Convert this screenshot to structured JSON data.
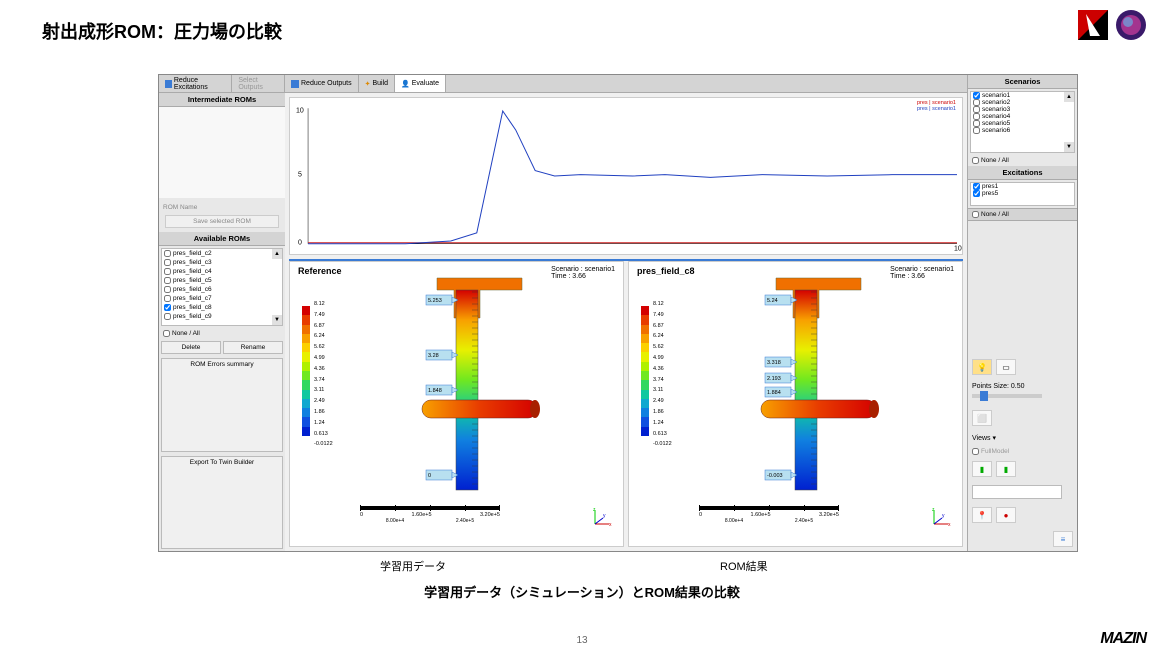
{
  "slide": {
    "title": "射出成形ROM：圧力場の比較",
    "caption_left": "学習用データ",
    "caption_right": "ROM結果",
    "caption_main": "学習用データ（シミュレーション）とROM結果の比較",
    "page_number": "13",
    "footer_logo": "MAZIN"
  },
  "left_panel": {
    "tab_reduce": "Reduce Excitations",
    "tab_select": "Select Outputs",
    "intermediate_title": "Intermediate ROMs",
    "rom_name_label": "ROM Name",
    "save_btn": "Save selected ROM",
    "available_title": "Available ROMs",
    "roms": [
      "pres_field_c2",
      "pres_field_c3",
      "pres_field_c4",
      "pres_field_c5",
      "pres_field_c6",
      "pres_field_c7",
      "pres_field_c8",
      "pres_field_c9"
    ],
    "none_all": "None / All",
    "delete_btn": "Delete",
    "rename_btn": "Rename",
    "errors_btn": "ROM Errors summary",
    "export_btn": "Export To Twin Builder"
  },
  "center": {
    "tab_reduce": "Reduce Outputs",
    "tab_build": "Build",
    "tab_evaluate": "Evaluate",
    "chart": {
      "legend1": "pres | scenario1",
      "legend2": "pres | scenario1",
      "ylim": [
        0,
        10
      ],
      "yticks": [
        0,
        5,
        10
      ],
      "xlim": [
        0,
        10
      ],
      "line_color_blue": "#2040c0",
      "line_color_red": "#d02020",
      "blue_points": [
        [
          0,
          0
        ],
        [
          1.5,
          0
        ],
        [
          2.2,
          0.2
        ],
        [
          2.6,
          0.8
        ],
        [
          3.0,
          9.8
        ],
        [
          3.2,
          8.4
        ],
        [
          3.5,
          5.4
        ],
        [
          3.8,
          5.0
        ],
        [
          4.2,
          5.1
        ],
        [
          5.0,
          5.0
        ],
        [
          5.5,
          5.1
        ],
        [
          6.2,
          4.9
        ],
        [
          7.0,
          5.1
        ],
        [
          8.0,
          5.0
        ],
        [
          9.0,
          5.1
        ],
        [
          10,
          5.1
        ]
      ]
    },
    "ref": {
      "title": "Reference",
      "scenario": "Scenario : scenario1",
      "time": "Time : 3.66",
      "probes": [
        "5.253",
        "3.28",
        "1.848",
        "0"
      ],
      "scale_top": [
        "0",
        "1.60e+5",
        "3.20e+5"
      ],
      "scale_bot": [
        "8.00e+4",
        "2.40e+5"
      ]
    },
    "rom": {
      "title": "pres_field_c8",
      "scenario": "Scenario : scenario1",
      "time": "Time : 3.66",
      "probes": [
        "5.24",
        "3.318",
        "2.193",
        "1.884",
        "-0.003"
      ],
      "scale_top": [
        "0",
        "1.60e+5",
        "3.20e+5"
      ],
      "scale_bot": [
        "8.00e+4",
        "2.40e+5"
      ]
    },
    "colorbar": {
      "labels": [
        "8.12",
        "7.49",
        "6.87",
        "6.24",
        "5.62",
        "4.99",
        "4.36",
        "3.74",
        "3.11",
        "2.49",
        "1.86",
        "1.24",
        "0.613",
        "-0.0122"
      ],
      "colors": [
        "#d40000",
        "#e83c00",
        "#f07000",
        "#f8a000",
        "#fcd000",
        "#e8f000",
        "#b0f000",
        "#70e820",
        "#30d860",
        "#10c8a0",
        "#10a8d0",
        "#1080e0",
        "#1050e0",
        "#0020d0"
      ]
    }
  },
  "right_panel": {
    "scenarios_title": "Scenarios",
    "scenarios": [
      "scenario1",
      "scenario2",
      "scenario3",
      "scenario4",
      "scenario5",
      "scenario6"
    ],
    "none_all": "None / All",
    "excitations_title": "Excitations",
    "excitations": [
      "pres1",
      "pres5"
    ],
    "none_all2": "None / All",
    "points_label": "Points Size: 0.50",
    "views_label": "Views",
    "fullmodel": "FullModel"
  }
}
